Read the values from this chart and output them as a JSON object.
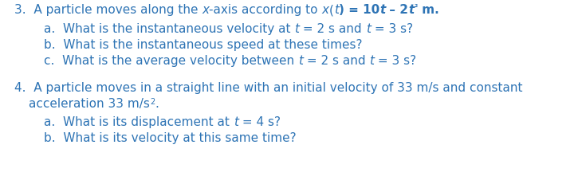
{
  "background_color": "#ffffff",
  "text_color": "#2E74B5",
  "font_size": 11.0,
  "fig_width": 7.25,
  "fig_height": 2.21,
  "dpi": 100
}
